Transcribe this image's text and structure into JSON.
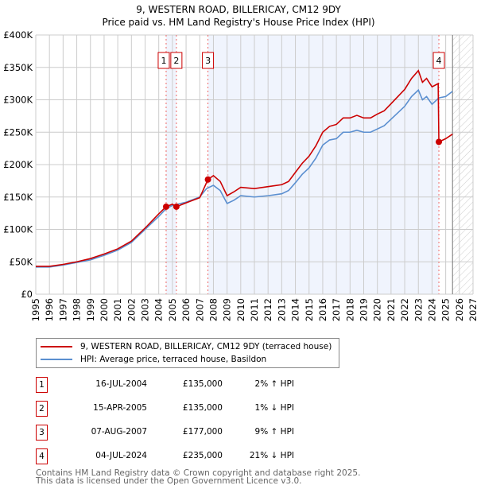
{
  "chart_data": {
    "type": "line",
    "title": "9, WESTERN ROAD, BILLERICAY, CM12 9DY",
    "subtitle": "Price paid vs. HM Land Registry's House Price Index (HPI)",
    "xlim": [
      1995,
      2027
    ],
    "ylim": [
      0,
      400000
    ],
    "y_ticks": [
      0,
      50000,
      100000,
      150000,
      200000,
      250000,
      300000,
      350000,
      400000
    ],
    "y_tick_labels": [
      "£0",
      "£50K",
      "£100K",
      "£150K",
      "£200K",
      "£250K",
      "£300K",
      "£350K",
      "£400K"
    ],
    "x_ticks": [
      "1995",
      "1996",
      "1997",
      "1998",
      "1999",
      "2000",
      "2001",
      "2002",
      "2003",
      "2004",
      "2005",
      "2006",
      "2007",
      "2008",
      "2009",
      "2010",
      "2011",
      "2012",
      "2013",
      "2014",
      "2015",
      "2016",
      "2017",
      "2018",
      "2019",
      "2020",
      "2021",
      "2022",
      "2023",
      "2024",
      "2025",
      "2026",
      "2027"
    ],
    "grid": true,
    "shaded_ranges": [
      [
        2004.54,
        2005.29
      ],
      [
        2007.6,
        2024.5
      ]
    ],
    "forecast_hatch_from": 2025.5,
    "series": [
      {
        "name": "9, WESTERN ROAD, BILLERICAY, CM12 9DY (terraced house)",
        "color": "#cc0000",
        "x": [
          1995,
          1996,
          1997,
          1998,
          1999,
          2000,
          2001,
          2002,
          2003,
          2003.5,
          2004,
          2004.54,
          2005,
          2005.29,
          2006,
          2007,
          2007.6,
          2008,
          2008.5,
          2009,
          2009.5,
          2010,
          2011,
          2012,
          2013,
          2013.5,
          2014,
          2014.5,
          2015,
          2015.5,
          2016,
          2016.5,
          2017,
          2017.5,
          2018,
          2018.5,
          2019,
          2019.5,
          2020,
          2020.5,
          2021,
          2021.5,
          2022,
          2022.5,
          2023,
          2023.3,
          2023.6,
          2024,
          2024.45,
          2024.5,
          2025,
          2025.5
        ],
        "y": [
          43000,
          43000,
          46000,
          50000,
          55000,
          62000,
          70000,
          82000,
          102000,
          113000,
          124000,
          135000,
          139000,
          135000,
          141000,
          149000,
          177000,
          183000,
          174000,
          152000,
          158000,
          165000,
          163000,
          166000,
          169000,
          174000,
          188000,
          202000,
          213000,
          229000,
          250000,
          259000,
          262000,
          272000,
          272000,
          276000,
          272000,
          272000,
          278000,
          283000,
          294000,
          305000,
          316000,
          333000,
          345000,
          327000,
          333000,
          320000,
          325000,
          235000,
          240000,
          247000
        ]
      },
      {
        "name": "HPI: Average price, terraced house, Basildon",
        "color": "#5b8fd0",
        "x": [
          1995,
          1996,
          1997,
          1998,
          1999,
          2000,
          2001,
          2002,
          2003,
          2003.5,
          2004,
          2004.54,
          2005,
          2006,
          2007,
          2007.5,
          2008,
          2008.5,
          2009,
          2009.5,
          2010,
          2011,
          2012,
          2013,
          2013.5,
          2014,
          2014.5,
          2015,
          2015.5,
          2016,
          2016.5,
          2017,
          2017.5,
          2018,
          2018.5,
          2019,
          2019.5,
          2020,
          2020.5,
          2021,
          2021.5,
          2022,
          2022.5,
          2023,
          2023.3,
          2023.6,
          2024,
          2024.5,
          2025,
          2025.5
        ],
        "y": [
          42000,
          42000,
          45000,
          49000,
          53000,
          60000,
          68000,
          80000,
          100000,
          110000,
          120000,
          132000,
          137000,
          142000,
          150000,
          163000,
          168000,
          160000,
          140000,
          145000,
          152000,
          150000,
          152000,
          155000,
          160000,
          172000,
          185000,
          195000,
          210000,
          230000,
          238000,
          240000,
          250000,
          250000,
          253000,
          250000,
          250000,
          255000,
          260000,
          270000,
          280000,
          290000,
          305000,
          315000,
          300000,
          305000,
          293000,
          303000,
          305000,
          313000
        ]
      }
    ],
    "sales": [
      {
        "id": "1",
        "x": 2004.54,
        "y": 135000
      },
      {
        "id": "2",
        "x": 2005.29,
        "y": 135000
      },
      {
        "id": "3",
        "x": 2007.6,
        "y": 177000
      },
      {
        "id": "4",
        "x": 2024.5,
        "y": 235000
      }
    ]
  },
  "legend": [
    {
      "label": "9, WESTERN ROAD, BILLERICAY, CM12 9DY (terraced house)",
      "color": "#cc0000"
    },
    {
      "label": "HPI: Average price, terraced house, Basildon",
      "color": "#5b8fd0"
    }
  ],
  "transactions": [
    {
      "num": "1",
      "date": "16-JUL-2004",
      "price": "£135,000",
      "hpi": "2% ↑ HPI"
    },
    {
      "num": "2",
      "date": "15-APR-2005",
      "price": "£135,000",
      "hpi": "1% ↓ HPI"
    },
    {
      "num": "3",
      "date": "07-AUG-2007",
      "price": "£177,000",
      "hpi": "9% ↑ HPI"
    },
    {
      "num": "4",
      "date": "04-JUL-2024",
      "price": "£235,000",
      "hpi": "21% ↓ HPI"
    }
  ],
  "footer": {
    "line1": "Contains HM Land Registry data © Crown copyright and database right 2025.",
    "line2": "This data is licensed under the Open Government Licence v3.0."
  }
}
